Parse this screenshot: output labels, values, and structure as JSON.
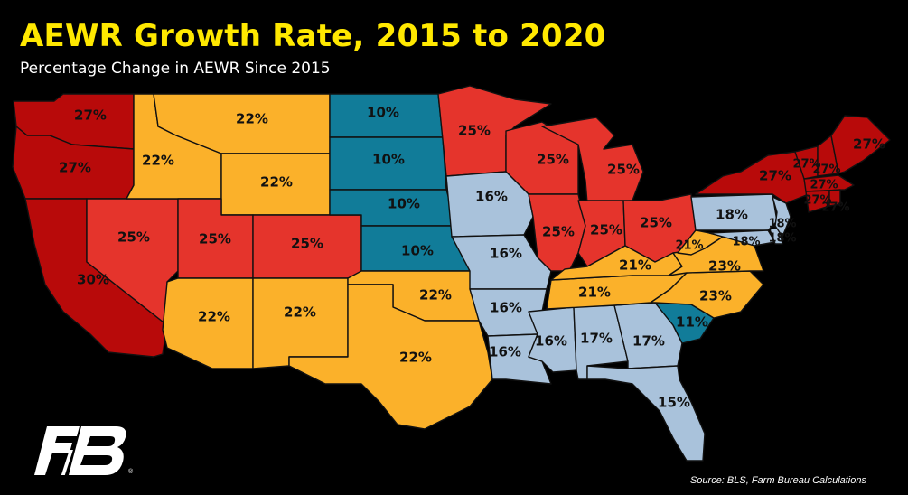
{
  "title": "AEWR Growth Rate, 2015 to 2020",
  "subtitle": "Percentage Change in AEWR Since 2015",
  "source": "Source: BLS, Farm Bureau Calculations",
  "logo_registered": "®",
  "colors": {
    "background": "#000000",
    "title": "#ffe800",
    "dark_red": "#b80a0a",
    "red": "#e5342c",
    "orange": "#fbb12a",
    "teal": "#117c99",
    "light_blue": "#a9c2db"
  },
  "legend_note": "",
  "states": [
    {
      "id": "WA",
      "value": "27%",
      "color": "#b80a0a"
    },
    {
      "id": "OR",
      "value": "27%",
      "color": "#b80a0a"
    },
    {
      "id": "CA",
      "value": "30%",
      "color": "#b80a0a"
    },
    {
      "id": "ID",
      "value": "22%",
      "color": "#fbb12a"
    },
    {
      "id": "MT",
      "value": "22%",
      "color": "#fbb12a"
    },
    {
      "id": "WY",
      "value": "22%",
      "color": "#fbb12a"
    },
    {
      "id": "NV",
      "value": "25%",
      "color": "#e5342c"
    },
    {
      "id": "UT",
      "value": "25%",
      "color": "#e5342c"
    },
    {
      "id": "CO",
      "value": "25%",
      "color": "#e5342c"
    },
    {
      "id": "AZ",
      "value": "22%",
      "color": "#fbb12a"
    },
    {
      "id": "NM",
      "value": "22%",
      "color": "#fbb12a"
    },
    {
      "id": "ND",
      "value": "10%",
      "color": "#117c99"
    },
    {
      "id": "SD",
      "value": "10%",
      "color": "#117c99"
    },
    {
      "id": "NE",
      "value": "10%",
      "color": "#117c99"
    },
    {
      "id": "KS",
      "value": "10%",
      "color": "#117c99"
    },
    {
      "id": "OK",
      "value": "22%",
      "color": "#fbb12a"
    },
    {
      "id": "TX",
      "value": "22%",
      "color": "#fbb12a"
    },
    {
      "id": "MN",
      "value": "25%",
      "color": "#e5342c"
    },
    {
      "id": "IA",
      "value": "16%",
      "color": "#a9c2db"
    },
    {
      "id": "MO",
      "value": "16%",
      "color": "#a9c2db"
    },
    {
      "id": "AR",
      "value": "16%",
      "color": "#a9c2db"
    },
    {
      "id": "LA",
      "value": "16%",
      "color": "#a9c2db"
    },
    {
      "id": "WI",
      "value": "25%",
      "color": "#e5342c"
    },
    {
      "id": "MI",
      "value": "25%",
      "color": "#e5342c"
    },
    {
      "id": "IL",
      "value": "25%",
      "color": "#e5342c"
    },
    {
      "id": "IN",
      "value": "25%",
      "color": "#e5342c"
    },
    {
      "id": "OH",
      "value": "25%",
      "color": "#e5342c"
    },
    {
      "id": "KY",
      "value": "21%",
      "color": "#fbb12a"
    },
    {
      "id": "TN",
      "value": "21%",
      "color": "#fbb12a"
    },
    {
      "id": "WV",
      "value": "21%",
      "color": "#fbb12a"
    },
    {
      "id": "VA",
      "value": "23%",
      "color": "#fbb12a"
    },
    {
      "id": "NC",
      "value": "23%",
      "color": "#fbb12a"
    },
    {
      "id": "SC",
      "value": "11%",
      "color": "#117c99"
    },
    {
      "id": "MS",
      "value": "16%",
      "color": "#a9c2db"
    },
    {
      "id": "AL",
      "value": "17%",
      "color": "#a9c2db"
    },
    {
      "id": "GA",
      "value": "17%",
      "color": "#a9c2db"
    },
    {
      "id": "FL",
      "value": "15%",
      "color": "#a9c2db"
    },
    {
      "id": "PA",
      "value": "18%",
      "color": "#a9c2db"
    },
    {
      "id": "NJ",
      "value": "18%",
      "color": "#a9c2db"
    },
    {
      "id": "MD",
      "value": "18%",
      "color": "#a9c2db"
    },
    {
      "id": "DE",
      "value": "18%",
      "color": "#a9c2db"
    },
    {
      "id": "NY",
      "value": "27%",
      "color": "#b80a0a"
    },
    {
      "id": "VT",
      "value": "27%",
      "color": "#b80a0a"
    },
    {
      "id": "NH",
      "value": "27%",
      "color": "#b80a0a"
    },
    {
      "id": "ME",
      "value": "27%",
      "color": "#b80a0a"
    },
    {
      "id": "MA",
      "value": "27%",
      "color": "#b80a0a"
    },
    {
      "id": "CT",
      "value": "27%",
      "color": "#b80a0a"
    },
    {
      "id": "RI",
      "value": "27%",
      "color": "#b80a0a"
    }
  ]
}
